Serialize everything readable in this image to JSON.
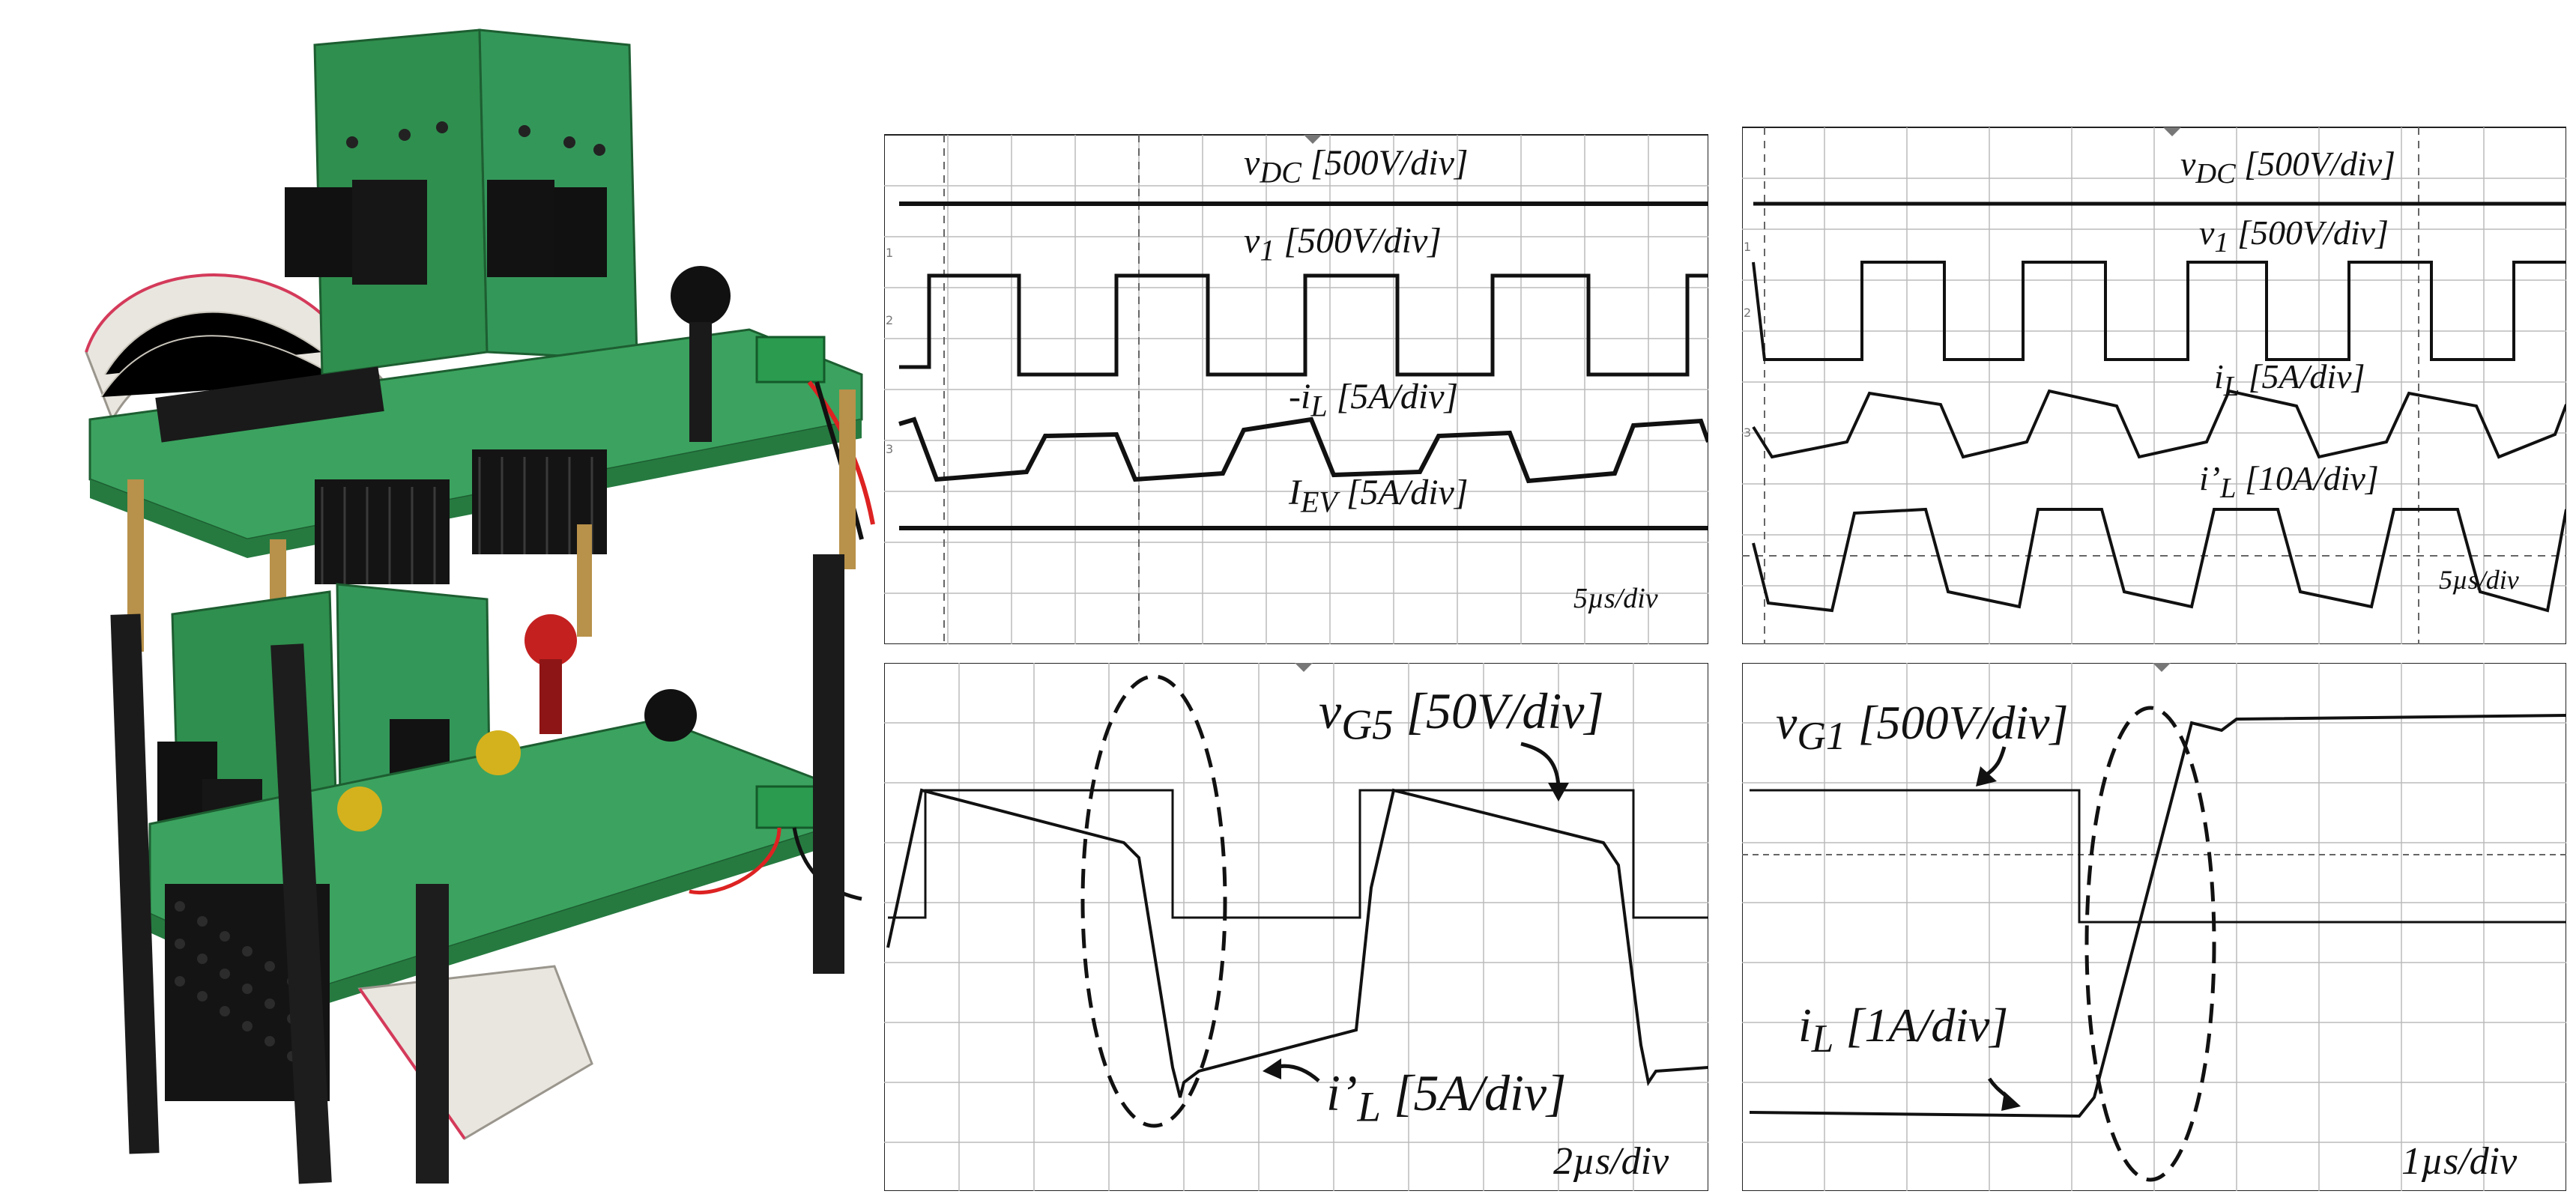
{
  "figure": {
    "photo": {
      "description_icon": "power-converter-prototype-photo"
    },
    "scopes": [
      {
        "id": "scope_a",
        "labels": [
          {
            "html": "v<sub>DC</sub> [500V/div]"
          },
          {
            "html": "v<sub>1</sub> [500V/div]"
          },
          {
            "html": "-i<sub>L</sub> [5A/div]"
          },
          {
            "html": "I<sub>EV</sub> [5A/div]"
          }
        ],
        "timebase": "5µs/div",
        "channel_markers": [
          "1",
          "2",
          "3"
        ]
      },
      {
        "id": "scope_b",
        "labels": [
          {
            "html": "v<sub>DC</sub> [500V/div]"
          },
          {
            "html": "v<sub>1</sub> [500V/div]"
          },
          {
            "html": "i<sub>L</sub> [5A/div]"
          },
          {
            "html": "i’<sub>L</sub> [10A/div]"
          }
        ],
        "timebase": "5µs/div",
        "channel_markers": [
          "1",
          "2",
          "3"
        ]
      },
      {
        "id": "scope_c",
        "labels": [
          {
            "html": "v<sub>G5</sub> [50V/div]"
          },
          {
            "html": "i’<sub>L</sub> [5A/div]"
          }
        ],
        "timebase": "2µs/div"
      },
      {
        "id": "scope_d",
        "labels": [
          {
            "html": "v<sub>G1</sub> [500V/div]"
          },
          {
            "html": "i<sub>L</sub> [1A/div]"
          }
        ],
        "timebase": "1µs/div"
      }
    ]
  }
}
